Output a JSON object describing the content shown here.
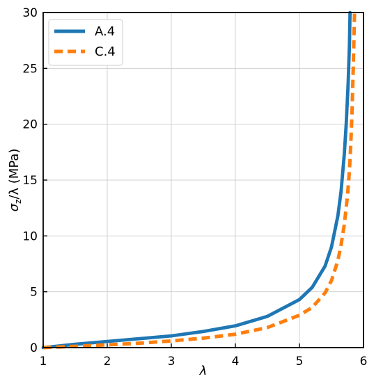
{
  "chart_data": {
    "type": "line",
    "title": "",
    "xlabel": "λ",
    "ylabel": {
      "main": "σ",
      "sub": "z",
      "rest": "/λ (MPa)"
    },
    "xlim": [
      1,
      6
    ],
    "ylim": [
      0,
      30
    ],
    "xticks": [
      1,
      2,
      3,
      4,
      5,
      6
    ],
    "yticks": [
      0,
      5,
      10,
      15,
      20,
      25,
      30
    ],
    "grid": true,
    "legend_position": "top-left",
    "series": [
      {
        "name": "A.4",
        "color": "#1f77b4",
        "style": "solid",
        "x": [
          1,
          1.5,
          2,
          2.5,
          3,
          3.5,
          4,
          4.5,
          5,
          5.2,
          5.4,
          5.5,
          5.6,
          5.65,
          5.7,
          5.73,
          5.76,
          5.78,
          5.79
        ],
        "y": [
          0,
          0.3,
          0.55,
          0.8,
          1.05,
          1.45,
          1.95,
          2.8,
          4.3,
          5.4,
          7.3,
          9.0,
          11.8,
          14.0,
          17.3,
          20.0,
          23.6,
          27.0,
          30.0
        ]
      },
      {
        "name": "C.4",
        "color": "#ff7f0e",
        "style": "dashed",
        "x": [
          1,
          1.5,
          2,
          2.5,
          3,
          3.5,
          4,
          4.5,
          5,
          5.2,
          5.4,
          5.5,
          5.6,
          5.65,
          5.7,
          5.75,
          5.78,
          5.8,
          5.82,
          5.84,
          5.86
        ],
        "y": [
          0,
          0.12,
          0.25,
          0.4,
          0.6,
          0.85,
          1.2,
          1.8,
          2.9,
          3.6,
          4.9,
          6.0,
          7.8,
          9.2,
          11.0,
          13.6,
          15.8,
          18.0,
          21.0,
          25.0,
          30.0
        ]
      }
    ]
  }
}
